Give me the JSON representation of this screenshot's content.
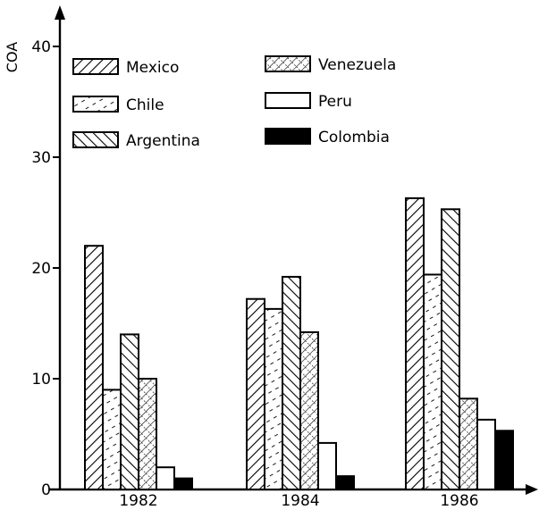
{
  "chart_data": {
    "type": "bar",
    "categories": [
      "1982",
      "1984",
      "1986"
    ],
    "series": [
      {
        "name": "Mexico",
        "pattern": "hatch-right",
        "values": [
          22,
          17.2,
          26.3
        ]
      },
      {
        "name": "Chile",
        "pattern": "dashed",
        "values": [
          9,
          16.3,
          19.4
        ]
      },
      {
        "name": "Argentina",
        "pattern": "hatch-left",
        "values": [
          14,
          19.2,
          25.3
        ]
      },
      {
        "name": "Venezuela",
        "pattern": "crosshatch",
        "values": [
          10,
          14.2,
          8.2
        ]
      },
      {
        "name": "Peru",
        "pattern": "empty",
        "values": [
          2,
          4.2,
          6.3
        ]
      },
      {
        "name": "Colombia",
        "pattern": "solid",
        "values": [
          1,
          1.2,
          5.3
        ]
      }
    ],
    "ylabel": "COA",
    "xlabel": "",
    "yticks": [
      "0",
      "10",
      "20",
      "30",
      "40"
    ],
    "ylim": [
      0,
      40
    ],
    "legend_position": "top-left"
  }
}
